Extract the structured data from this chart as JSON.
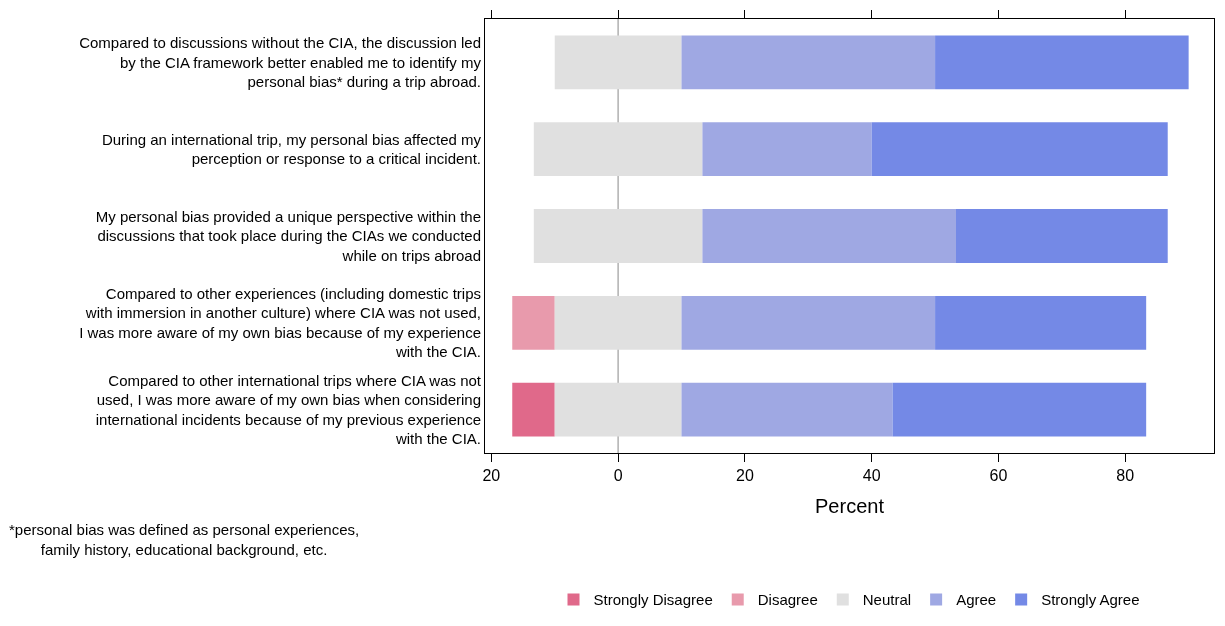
{
  "chart_data": {
    "type": "bar",
    "orientation": "horizontal",
    "xlabel": "Percent",
    "categories": [
      "Compared to discussions without the CIA, the discussion led\nby the CIA framework better enabled me to identify my\npersonal bias* during a trip abroad.",
      "During an international trip, my personal bias affected my\nperception or response to a critical incident.",
      "My personal bias provided a unique perspective within the\ndiscussions that took place during the CIAs we conducted\nwhile on trips abroad",
      "Compared to other experiences (including domestic trips\nwith immersion in another culture) where CIA was not used,\nI was more aware of my own bias because of my experience\nwith the CIA.",
      "Compared to other international trips where CIA was not\nused, I was more aware of my own bias when considering\ninternational incidents because of my previous experience\nwith the CIA."
    ],
    "series": [
      {
        "name": "Strongly Disagree",
        "color": "#e0698a",
        "base": [
          null,
          null,
          null,
          null,
          -16.7
        ],
        "values": [
          null,
          null,
          null,
          null,
          6.7
        ]
      },
      {
        "name": "Disagree",
        "color": "#e89aac",
        "base": [
          null,
          null,
          null,
          -16.7,
          null
        ],
        "values": [
          null,
          null,
          null,
          6.7,
          null
        ]
      },
      {
        "name": "Neutral",
        "color": "#e0e0e0",
        "base": [
          -10,
          -13.3,
          -13.3,
          -10,
          -10
        ],
        "values": [
          20,
          26.6,
          26.6,
          20,
          20
        ]
      },
      {
        "name": "Agree",
        "color": "#9fa8e3",
        "base": [
          10,
          13.3,
          13.3,
          10,
          10
        ],
        "values": [
          40,
          26.7,
          40,
          40,
          33.3
        ]
      },
      {
        "name": "Strongly Agree",
        "color": "#7489e6",
        "base": [
          50,
          40,
          53.3,
          50,
          43.3
        ],
        "values": [
          40,
          46.7,
          33.4,
          33.3,
          40
        ]
      }
    ],
    "xlim": [
      -21,
      94
    ],
    "xticks": [
      {
        "value": -20,
        "label": "20"
      },
      0,
      20,
      40,
      60,
      80
    ],
    "ref_lines": [
      {
        "axis": "x",
        "value": 0,
        "color": "#b0b0b0"
      }
    ],
    "grid": false,
    "legend": "bottom",
    "annotations": [
      "*personal bias was defined as personal experiences,\nfamily history, educational background, etc."
    ]
  }
}
